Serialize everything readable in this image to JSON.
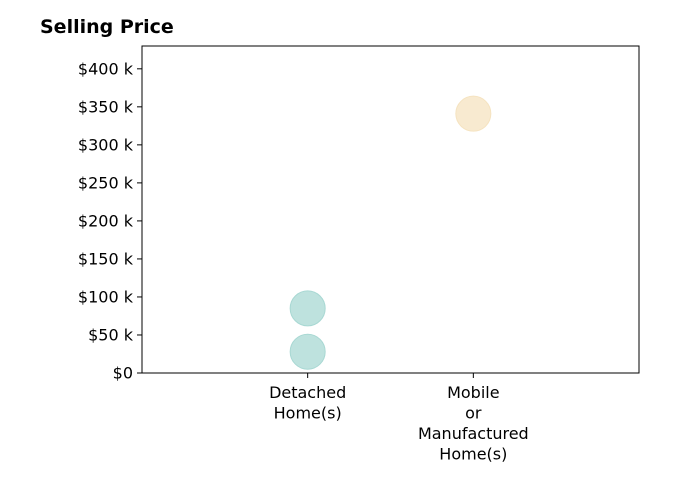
{
  "chart_data": {
    "type": "scatter",
    "title": "Selling Price",
    "xlabel": "",
    "ylabel": "",
    "categories": [
      [
        "Detached",
        "Home(s)"
      ],
      [
        "Mobile",
        "or",
        "Manufactured",
        "Home(s)"
      ]
    ],
    "x_range": [
      -1,
      2
    ],
    "ylim": [
      0,
      430000
    ],
    "y_ticks": [
      0,
      50000,
      100000,
      150000,
      200000,
      250000,
      300000,
      350000,
      400000
    ],
    "y_tick_labels": [
      "$0",
      "$50 k",
      "$100 k",
      "$150 k",
      "$200 k",
      "$250 k",
      "$300 k",
      "$350 k",
      "$400 k"
    ],
    "grid": false,
    "series": [
      {
        "category_index": 0,
        "color": "#a8d8d3",
        "values": [
          28000,
          85000
        ]
      },
      {
        "category_index": 1,
        "color": "#f5e3c0",
        "values": [
          341000
        ]
      }
    ]
  }
}
